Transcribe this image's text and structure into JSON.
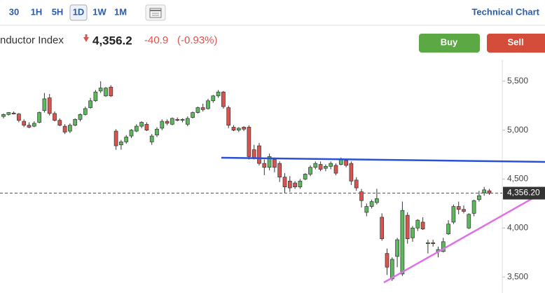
{
  "toolbar": {
    "intervals": [
      "30",
      "1H",
      "5H",
      "1D",
      "1W",
      "1M"
    ],
    "title": "Technical Chart"
  },
  "header": {
    "name": "nductor Index",
    "price": "4,356.2",
    "change": "-40.9",
    "change_pct": "(-0.93%)"
  },
  "buttons": [
    "Buy",
    "Sell"
  ],
  "chart_data": {
    "type": "candlestick",
    "open": [
      5140,
      5160,
      5175,
      5165,
      5090,
      5050,
      5040,
      5080,
      5200,
      5330,
      5170,
      5100,
      5040,
      4990,
      5050,
      5110,
      5160,
      5230,
      5300,
      5400,
      5350,
      5440,
      4990,
      4850,
      4880,
      4940,
      4990,
      5040,
      5060,
      4880,
      4950,
      5020,
      5090,
      5060,
      5110,
      5100,
      5060,
      5130,
      5180,
      5230,
      5220,
      5300,
      5350,
      5390,
      5230,
      5030,
      5000,
      5030,
      5030,
      4800,
      4840,
      4660,
      4620,
      4700,
      4660,
      4520,
      4480,
      4460,
      4420,
      4500,
      4550,
      4620,
      4650,
      4610,
      4630,
      4640,
      4650,
      4690,
      4660,
      4490,
      4370,
      4160,
      4220,
      4260,
      4110,
      3740,
      3480,
      3710,
      3530,
      4130,
      3900,
      4000,
      4060,
      3840,
      3850,
      3760,
      3760,
      3940,
      4060,
      4220,
      4190,
      4000,
      4150,
      4290,
      4360,
      4380
    ],
    "high": [
      5170,
      5185,
      5190,
      5175,
      5110,
      5080,
      5090,
      5190,
      5380,
      5370,
      5190,
      5120,
      5060,
      5070,
      5120,
      5170,
      5240,
      5330,
      5410,
      5500,
      5440,
      5460,
      5010,
      4900,
      4950,
      5010,
      5060,
      5090,
      5080,
      4960,
      5030,
      5110,
      5110,
      5130,
      5130,
      5120,
      5140,
      5190,
      5240,
      5270,
      5320,
      5360,
      5410,
      5400,
      5250,
      5050,
      5030,
      5040,
      5050,
      4850,
      4870,
      4700,
      4760,
      4720,
      4680,
      4560,
      4530,
      4480,
      4500,
      4560,
      4640,
      4680,
      4680,
      4650,
      4680,
      4660,
      4720,
      4700,
      4680,
      4520,
      4400,
      4250,
      4290,
      4400,
      4150,
      3790,
      3700,
      3900,
      4270,
      4160,
      4020,
      4090,
      4110,
      3880,
      3880,
      3810,
      3900,
      4080,
      4240,
      4270,
      4230,
      4150,
      4290,
      4380,
      4420,
      4400
    ],
    "low": [
      5120,
      5150,
      5160,
      5080,
      5030,
      5020,
      5030,
      5070,
      5180,
      5150,
      5090,
      5040,
      4960,
      4970,
      5040,
      5090,
      5150,
      5220,
      5290,
      5380,
      5340,
      5340,
      4800,
      4800,
      4860,
      4920,
      4980,
      5020,
      4990,
      4850,
      4930,
      5000,
      5050,
      5050,
      5090,
      5080,
      5040,
      5120,
      5170,
      5190,
      5210,
      5280,
      5330,
      5220,
      5020,
      4990,
      4980,
      4990,
      4700,
      4700,
      4640,
      4540,
      4590,
      4570,
      4470,
      4360,
      4370,
      4400,
      4400,
      4490,
      4530,
      4600,
      4580,
      4580,
      4600,
      4540,
      4640,
      4620,
      4440,
      4380,
      4210,
      4120,
      4200,
      4240,
      3870,
      3520,
      3460,
      3600,
      3510,
      3840,
      3860,
      3970,
      3980,
      3740,
      3810,
      3700,
      3750,
      3930,
      4040,
      4140,
      4150,
      3990,
      4120,
      4270,
      4330,
      4340
    ],
    "close": [
      5160,
      5180,
      5165,
      5100,
      5050,
      5030,
      5070,
      5180,
      5320,
      5170,
      5100,
      5050,
      4980,
      5050,
      5110,
      5160,
      5220,
      5300,
      5390,
      5430,
      5430,
      5350,
      4840,
      4880,
      4930,
      5000,
      5040,
      5080,
      5000,
      4940,
      5010,
      5090,
      5070,
      5120,
      5100,
      5110,
      5120,
      5180,
      5230,
      5210,
      5300,
      5350,
      5390,
      5240,
      5050,
      5000,
      5020,
      5010,
      4730,
      4720,
      4660,
      4620,
      4730,
      4620,
      4520,
      4420,
      4410,
      4420,
      4480,
      4550,
      4620,
      4660,
      4600,
      4630,
      4660,
      4560,
      4700,
      4640,
      4480,
      4410,
      4280,
      4220,
      4270,
      4300,
      3890,
      3600,
      3680,
      3880,
      4180,
      3890,
      4000,
      4080,
      3990,
      3850,
      3840,
      3780,
      3860,
      4040,
      4220,
      4190,
      4170,
      4140,
      4280,
      4330,
      4390,
      4356.2
    ],
    "up_color": "#5cb85c",
    "down_color": "#d9534f",
    "ylim": [
      3336,
      5721
    ],
    "yticks": [
      {
        "value": 3500,
        "label": "3,500"
      },
      {
        "value": 4000,
        "label": "4,000"
      },
      {
        "value": 4500,
        "label": "4,500"
      },
      {
        "value": 5000,
        "label": "5,000"
      },
      {
        "value": 5500,
        "label": "5,500"
      }
    ],
    "last_price": {
      "value": 4356.2,
      "label": "4,356.20"
    },
    "grid": false
  }
}
